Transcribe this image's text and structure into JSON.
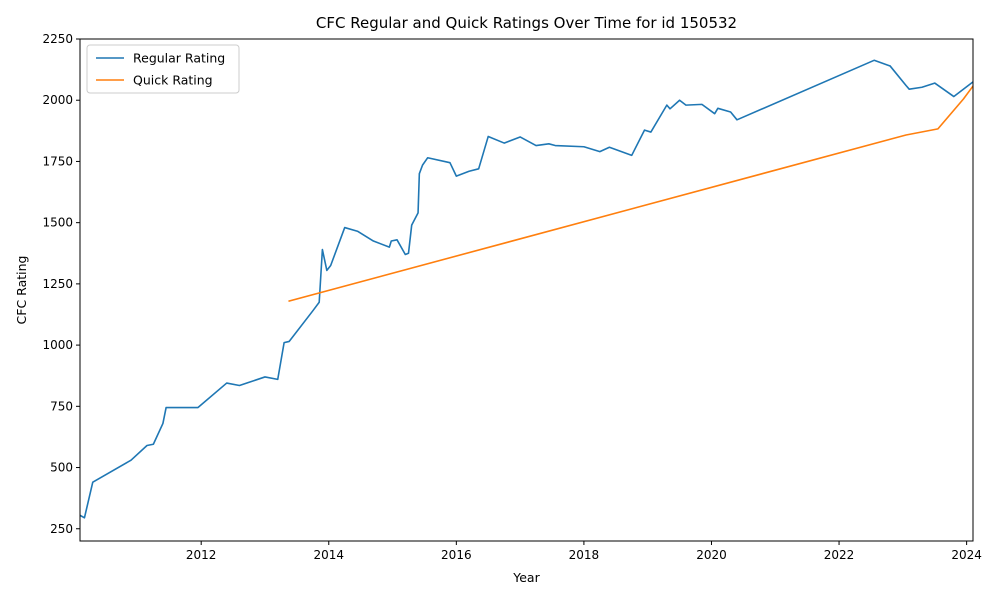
{
  "chart_data": {
    "type": "line",
    "title": "CFC Regular and Quick Ratings Over Time for id 150532",
    "xlabel": "Year",
    "ylabel": "CFC Rating",
    "xlim": [
      2010.1,
      2024.1
    ],
    "ylim": [
      200,
      2250
    ],
    "xticks": [
      2012,
      2014,
      2016,
      2018,
      2020,
      2022,
      2024
    ],
    "yticks": [
      250,
      500,
      750,
      1000,
      1250,
      1500,
      1750,
      2000,
      2250
    ],
    "grid": false,
    "legend_position": "upper-left",
    "series": [
      {
        "name": "Regular Rating",
        "color": "#1f77b4",
        "points": [
          [
            2010.1,
            305
          ],
          [
            2010.17,
            295
          ],
          [
            2010.3,
            440
          ],
          [
            2010.9,
            530
          ],
          [
            2011.15,
            590
          ],
          [
            2011.25,
            595
          ],
          [
            2011.4,
            680
          ],
          [
            2011.45,
            745
          ],
          [
            2011.95,
            745
          ],
          [
            2012.4,
            845
          ],
          [
            2012.6,
            835
          ],
          [
            2013.0,
            870
          ],
          [
            2013.2,
            860
          ],
          [
            2013.3,
            1010
          ],
          [
            2013.38,
            1015
          ],
          [
            2013.75,
            1140
          ],
          [
            2013.85,
            1175
          ],
          [
            2013.9,
            1390
          ],
          [
            2013.97,
            1305
          ],
          [
            2014.03,
            1325
          ],
          [
            2014.25,
            1480
          ],
          [
            2014.45,
            1465
          ],
          [
            2014.7,
            1425
          ],
          [
            2014.95,
            1400
          ],
          [
            2014.98,
            1425
          ],
          [
            2015.07,
            1430
          ],
          [
            2015.2,
            1370
          ],
          [
            2015.25,
            1375
          ],
          [
            2015.3,
            1490
          ],
          [
            2015.4,
            1540
          ],
          [
            2015.42,
            1700
          ],
          [
            2015.47,
            1735
          ],
          [
            2015.55,
            1765
          ],
          [
            2015.9,
            1745
          ],
          [
            2016.0,
            1690
          ],
          [
            2016.2,
            1710
          ],
          [
            2016.35,
            1720
          ],
          [
            2016.5,
            1852
          ],
          [
            2016.75,
            1825
          ],
          [
            2017.0,
            1850
          ],
          [
            2017.25,
            1815
          ],
          [
            2017.45,
            1822
          ],
          [
            2017.55,
            1815
          ],
          [
            2018.0,
            1810
          ],
          [
            2018.25,
            1790
          ],
          [
            2018.4,
            1808
          ],
          [
            2018.75,
            1775
          ],
          [
            2018.95,
            1878
          ],
          [
            2019.05,
            1870
          ],
          [
            2019.3,
            1980
          ],
          [
            2019.35,
            1965
          ],
          [
            2019.5,
            2000
          ],
          [
            2019.6,
            1980
          ],
          [
            2019.85,
            1983
          ],
          [
            2020.05,
            1945
          ],
          [
            2020.1,
            1967
          ],
          [
            2020.3,
            1952
          ],
          [
            2020.4,
            1920
          ],
          [
            2022.55,
            2163
          ],
          [
            2022.8,
            2140
          ],
          [
            2023.05,
            2060
          ],
          [
            2023.1,
            2045
          ],
          [
            2023.3,
            2053
          ],
          [
            2023.5,
            2070
          ],
          [
            2023.8,
            2015
          ],
          [
            2024.1,
            2075
          ],
          [
            2024.3,
            2010
          ]
        ]
      },
      {
        "name": "Quick Rating",
        "color": "#ff7f0e",
        "points": [
          [
            2013.38,
            1180
          ],
          [
            2023.05,
            1858
          ],
          [
            2023.55,
            1883
          ],
          [
            2023.95,
            2005
          ],
          [
            2024.2,
            2093
          ]
        ]
      }
    ]
  }
}
